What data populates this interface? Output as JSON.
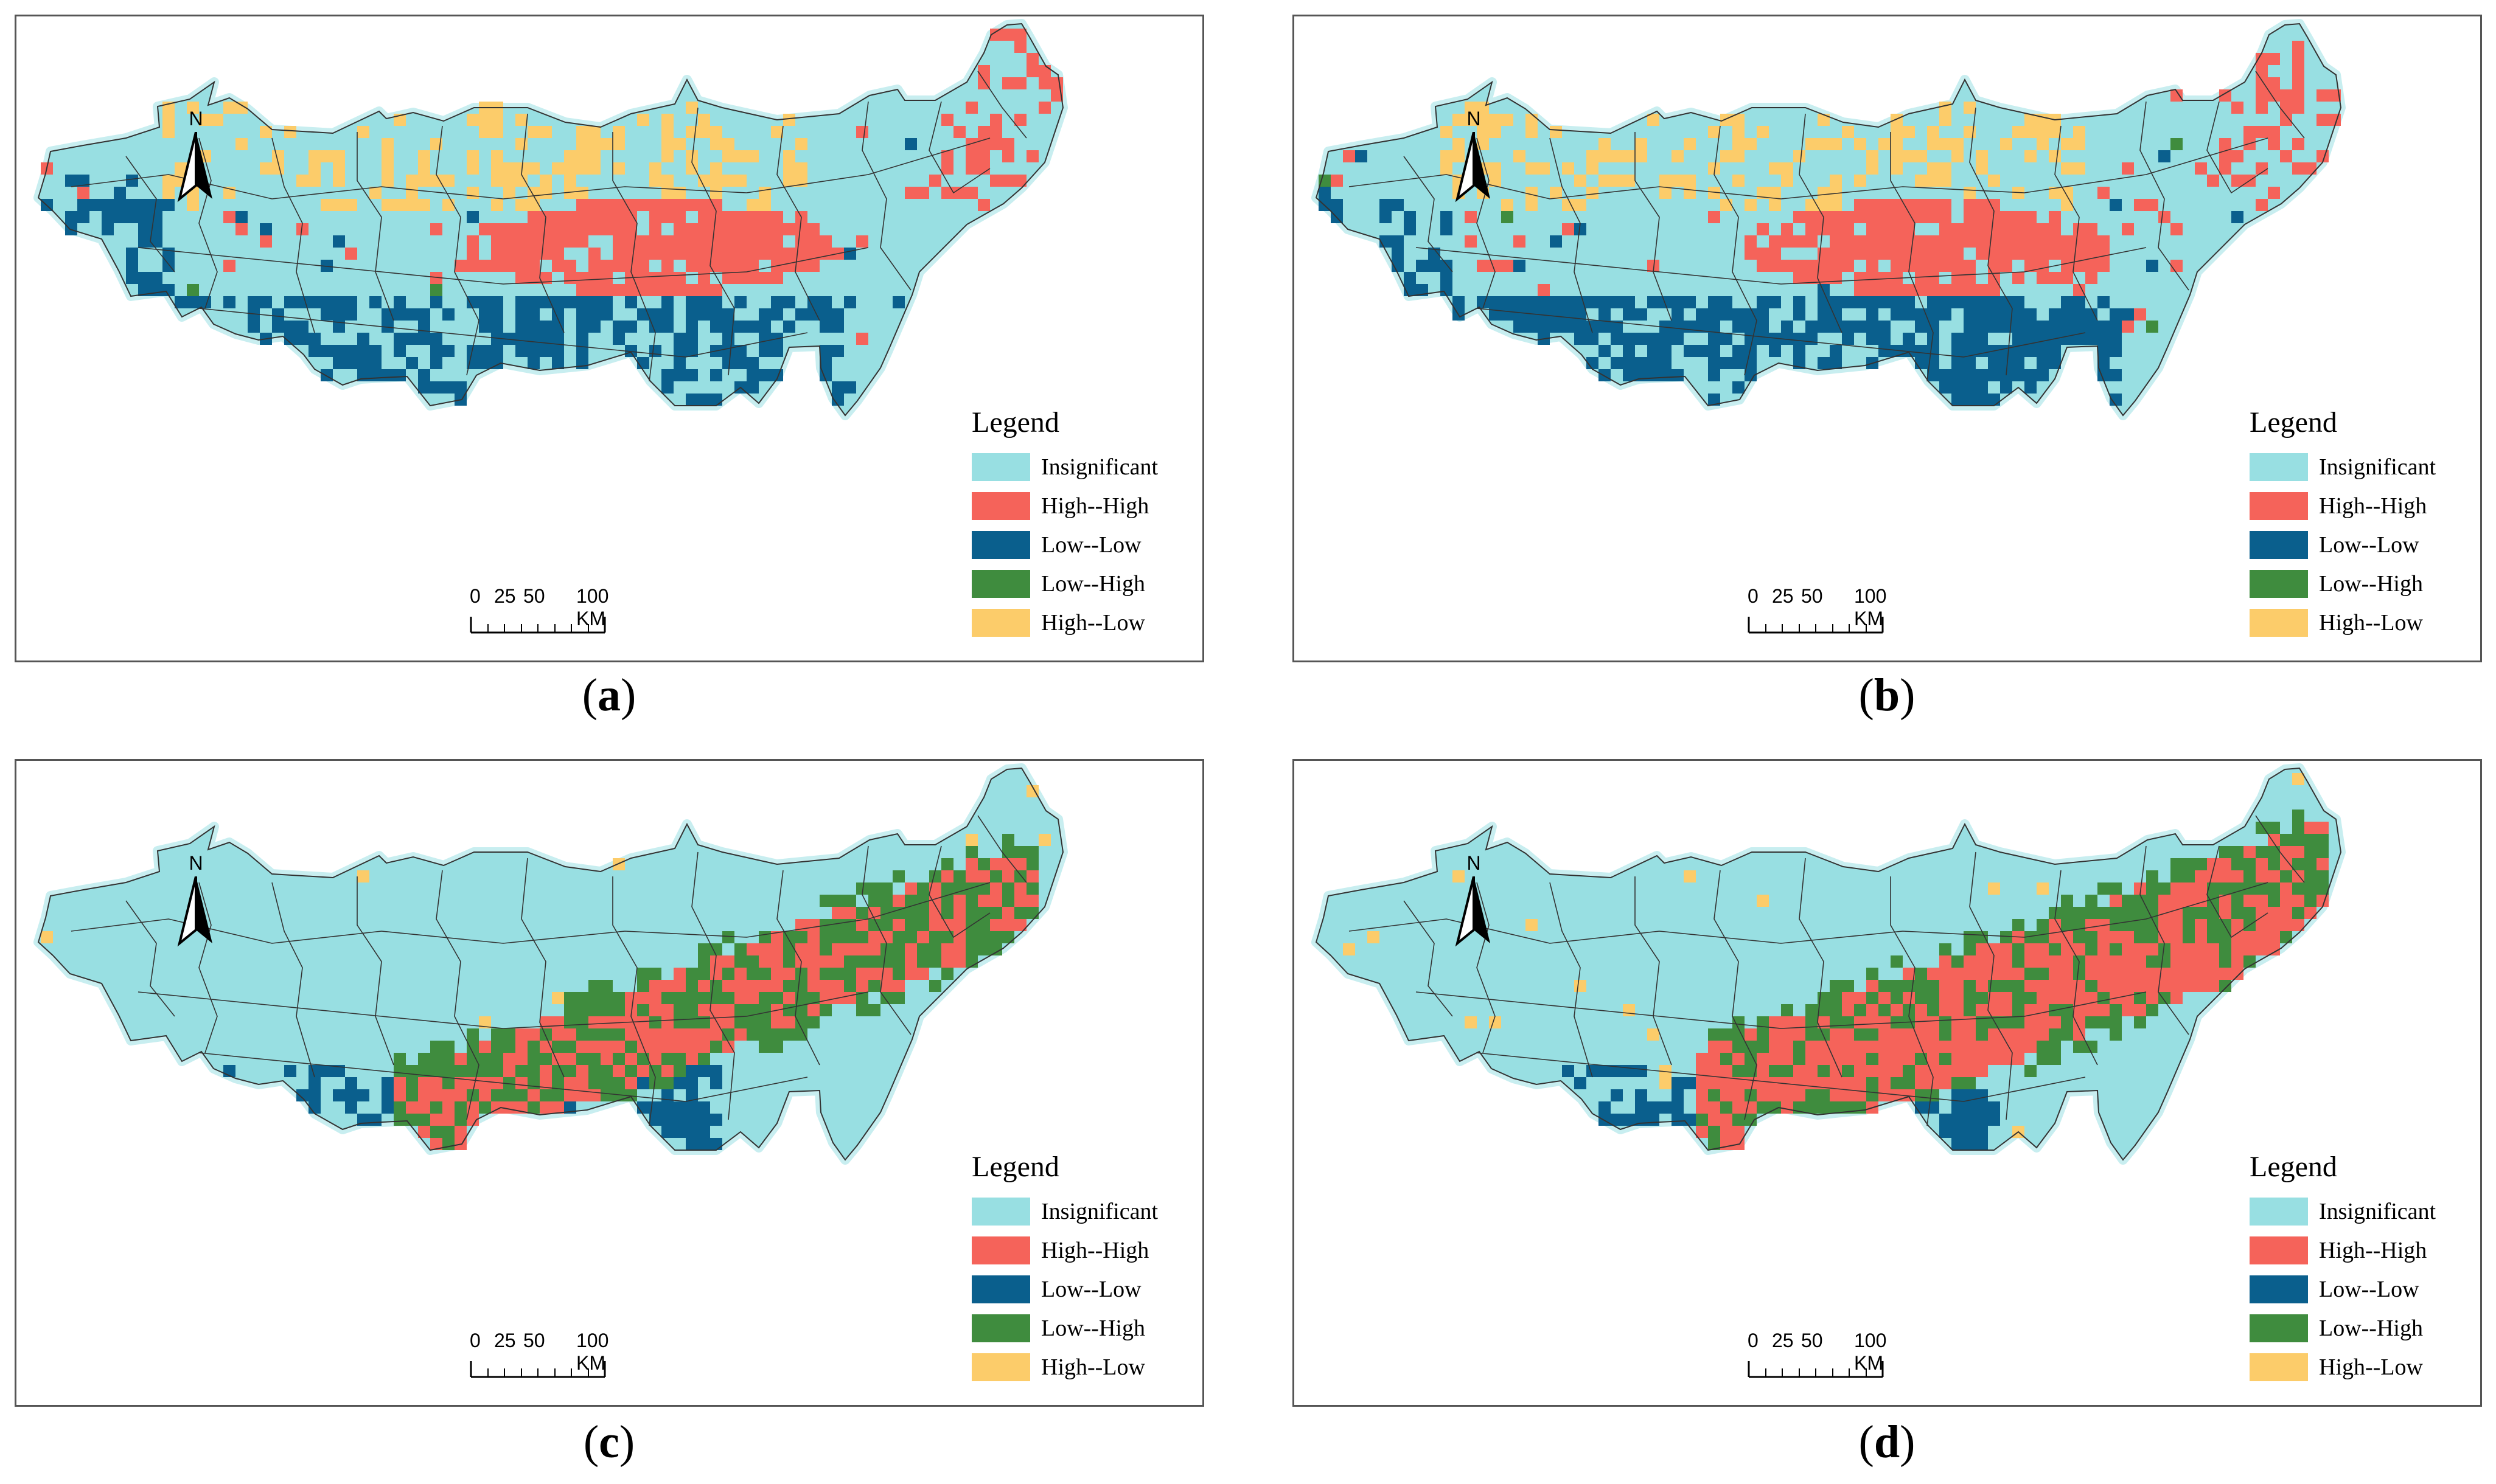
{
  "colors": {
    "insignificant": "#98dfe2",
    "high_high": "#f5635a",
    "low_low": "#0a5f8d",
    "low_high": "#3f8c3e",
    "high_low": "#fccc6a",
    "boundary": "#333333",
    "halo": "#c8eef0"
  },
  "legend": {
    "title": "Legend",
    "items": [
      {
        "key": "insignificant",
        "label": "Insignificant"
      },
      {
        "key": "high_high",
        "label": "High--High"
      },
      {
        "key": "low_low",
        "label": "Low--Low"
      },
      {
        "key": "low_high",
        "label": "Low--High"
      },
      {
        "key": "high_low",
        "label": "High--Low"
      }
    ]
  },
  "north_arrow": {
    "label": "N"
  },
  "scale_bar": {
    "ticks": [
      "0",
      "25",
      "50",
      "100 KM"
    ]
  },
  "panels": [
    {
      "id": "a",
      "caption_letter": "a",
      "pattern": "patchy"
    },
    {
      "id": "b",
      "caption_letter": "b",
      "pattern": "patchy-south"
    },
    {
      "id": "c",
      "caption_letter": "c",
      "pattern": "belt"
    },
    {
      "id": "d",
      "caption_letter": "d",
      "pattern": "belt-wide"
    }
  ]
}
